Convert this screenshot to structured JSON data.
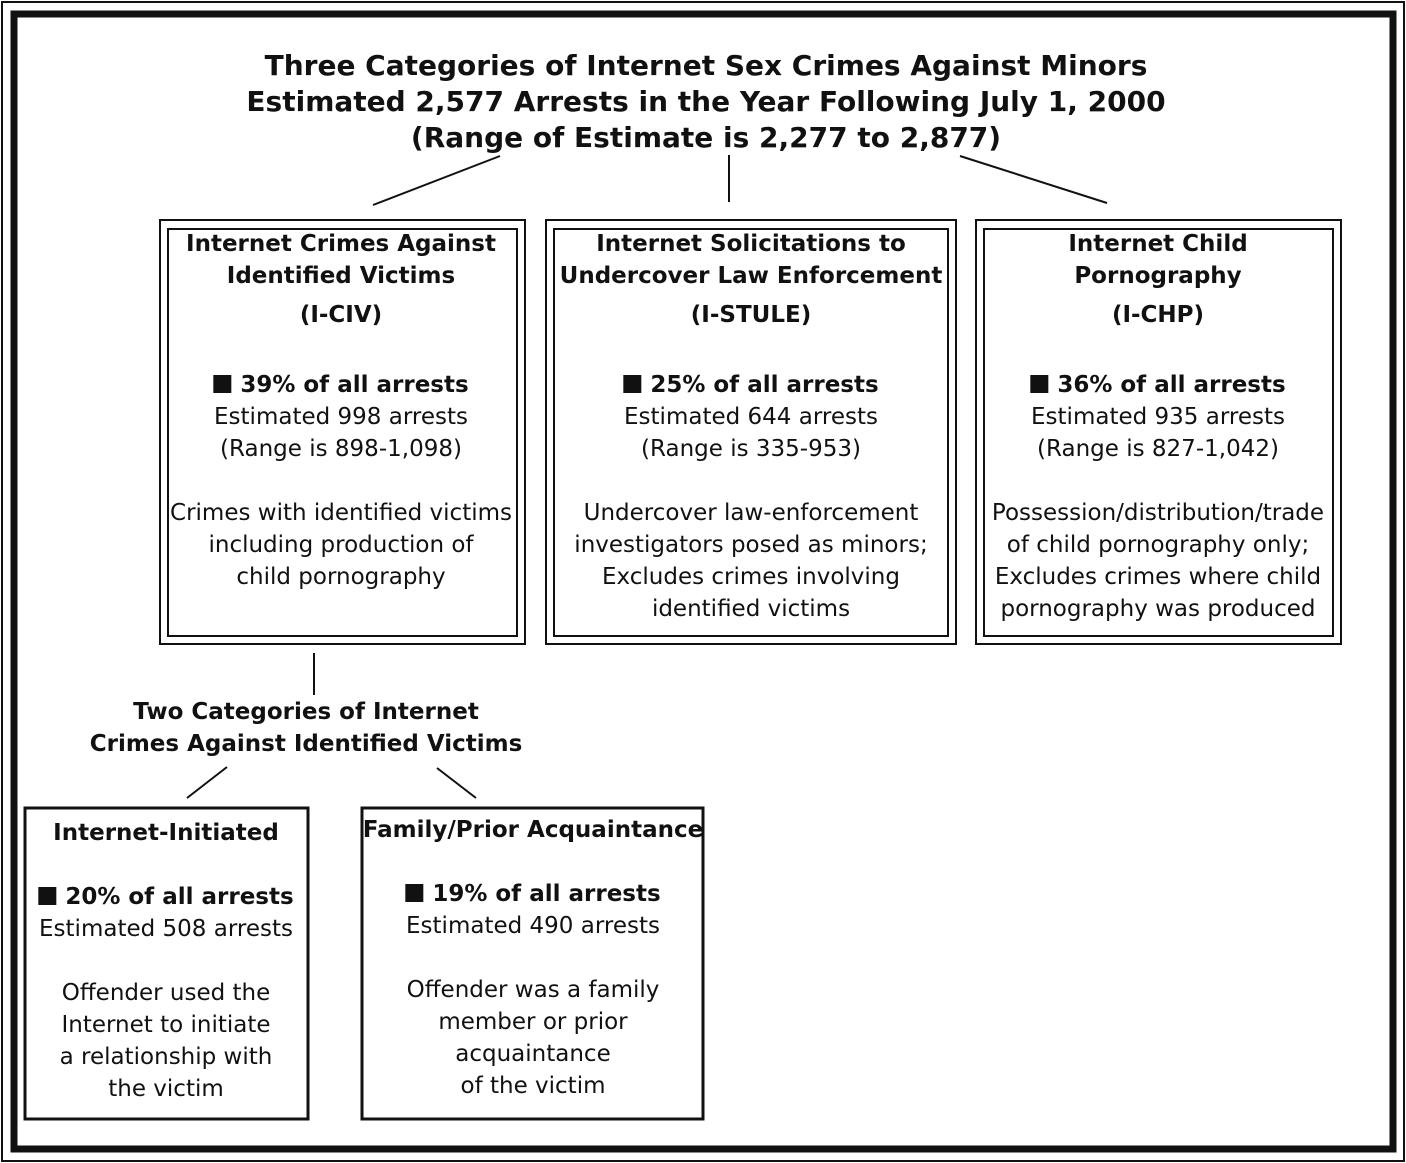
{
  "title": [
    "Three Categories of Internet Sex Crimes Against Minors",
    "Estimated 2,577 Arrests in the Year Following July 1, 2000",
    "(Range of Estimate is 2,277 to 2,877)"
  ],
  "categories": [
    {
      "title": [
        "Internet Crimes Against",
        "Identified Victims"
      ],
      "code": "(I-CIV)",
      "share": "39% of all arrests",
      "estimate": "Estimated 998 arrests",
      "range": "(Range is 898-1,098)",
      "description": [
        "Crimes with identified victims",
        "including production of",
        "child pornography"
      ]
    },
    {
      "title": [
        "Internet Solicitations to",
        "Undercover Law Enforcement"
      ],
      "code": "(I-STULE)",
      "share": "25% of all arrests",
      "estimate": "Estimated 644 arrests",
      "range": "(Range is 335-953)",
      "description": [
        "Undercover law-enforcement",
        "investigators posed as minors;",
        "Excludes crimes involving",
        "identified victims"
      ]
    },
    {
      "title": [
        "Internet Child",
        "Pornography"
      ],
      "code": "(I-CHP)",
      "share": "36% of all arrests",
      "estimate": "Estimated 935 arrests",
      "range": "(Range is 827-1,042)",
      "description": [
        "Possession/distribution/trade",
        "of child pornography only;",
        "Excludes crimes where child",
        "pornography was produced"
      ]
    }
  ],
  "subheading": [
    "Two Categories of Internet",
    "Crimes Against Identified Victims"
  ],
  "subcategories": [
    {
      "title": "Internet-Initiated",
      "share": "20% of all arrests",
      "estimate": "Estimated 508 arrests",
      "description": [
        "Offender used the",
        "Internet to initiate",
        "a relationship with",
        "the victim"
      ]
    },
    {
      "title": "Family/Prior Acquaintance",
      "share": "19% of all arrests",
      "estimate": "Estimated 490 arrests",
      "description": [
        "Offender was a family",
        "member or prior",
        "acquaintance",
        "of the victim"
      ]
    }
  ]
}
